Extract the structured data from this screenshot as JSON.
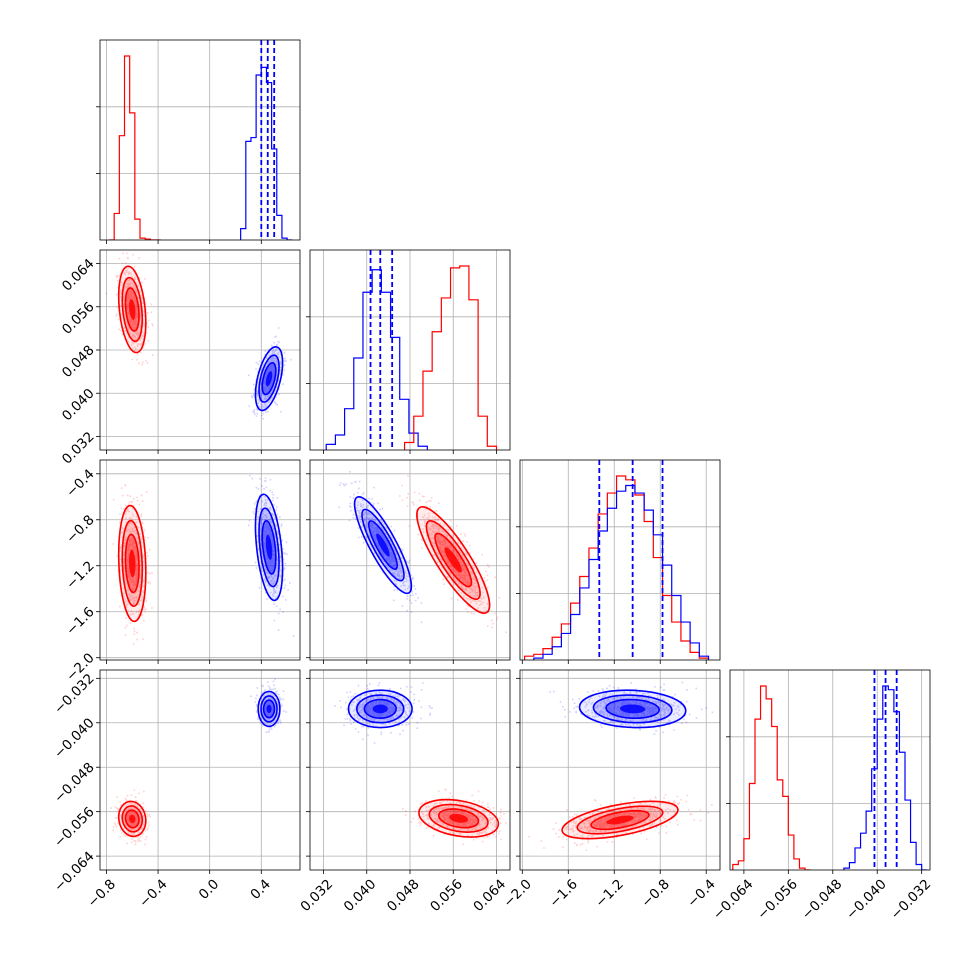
{
  "figure": {
    "type": "corner-plot",
    "grid": true
  },
  "colors": {
    "red": "#ff0000",
    "blue": "#0000ff",
    "grid": "#b0b0b0",
    "frame": "#000000"
  },
  "parameters": [
    {
      "range": [
        -0.85,
        0.7
      ],
      "ticks": [
        "−0.8",
        "−0.4",
        "0.0",
        "0.4"
      ],
      "tick_values": [
        -0.8,
        -0.4,
        0.0,
        0.4
      ]
    },
    {
      "range": [
        0.0295,
        0.0665
      ],
      "ticks": [
        "0.032",
        "0.040",
        "0.048",
        "0.056",
        "0.064"
      ],
      "tick_values": [
        0.032,
        0.04,
        0.048,
        0.056,
        0.064
      ]
    },
    {
      "range": [
        -2.02,
        -0.28
      ],
      "ticks": [
        "−2.0",
        "−1.6",
        "−1.2",
        "−0.8",
        "−0.4"
      ],
      "tick_values": [
        -2.0,
        -1.6,
        -1.2,
        -0.8,
        -0.4
      ]
    },
    {
      "range": [
        -0.0665,
        -0.0305
      ],
      "ticks": [
        "−0.064",
        "−0.056",
        "−0.048",
        "−0.040",
        "−0.032"
      ],
      "tick_values": [
        -0.064,
        -0.056,
        -0.048,
        -0.04,
        -0.032
      ]
    }
  ],
  "chart_data": [
    {
      "type": "histogram",
      "panel": "param-1",
      "series": [
        {
          "color": "red",
          "edges": [
            -0.78,
            -0.74,
            -0.7,
            -0.66,
            -0.62,
            -0.58,
            -0.54,
            -0.5,
            -0.46,
            -0.42,
            -0.38
          ],
          "counts": [
            0.0,
            0.14,
            0.55,
            0.97,
            0.67,
            0.11,
            0.01,
            0.005,
            0.0,
            0.0
          ]
        },
        {
          "color": "blue",
          "edges": [
            0.24,
            0.28,
            0.32,
            0.36,
            0.4,
            0.44,
            0.48,
            0.52,
            0.56,
            0.6,
            0.64
          ],
          "counts": [
            0.06,
            0.52,
            0.54,
            0.87,
            0.91,
            0.83,
            0.48,
            0.13,
            0.01,
            0.0
          ]
        }
      ],
      "quantiles": {
        "color": "blue",
        "values": [
          0.4,
          0.45,
          0.5
        ]
      }
    },
    {
      "type": "histogram",
      "panel": "param-2",
      "series": [
        {
          "color": "blue",
          "edges": [
            0.0325,
            0.0342,
            0.0359,
            0.0376,
            0.0393,
            0.041,
            0.0427,
            0.0444,
            0.0461,
            0.0478,
            0.0495,
            0.0512
          ],
          "counts": [
            0.03,
            0.08,
            0.22,
            0.49,
            0.84,
            0.96,
            0.84,
            0.6,
            0.27,
            0.09,
            0.02
          ]
        },
        {
          "color": "red",
          "edges": [
            0.047,
            0.0487,
            0.0504,
            0.0521,
            0.0538,
            0.0555,
            0.0572,
            0.0589,
            0.0606,
            0.0623,
            0.064
          ],
          "counts": [
            0.04,
            0.18,
            0.42,
            0.63,
            0.81,
            0.97,
            0.98,
            0.8,
            0.18,
            0.02
          ]
        }
      ],
      "quantiles": {
        "color": "blue",
        "values": [
          0.0407,
          0.0425,
          0.0447
        ]
      }
    },
    {
      "type": "histogram",
      "panel": "param-3",
      "series": [
        {
          "color": "red",
          "edges": [
            -1.98,
            -1.9,
            -1.82,
            -1.74,
            -1.66,
            -1.58,
            -1.5,
            -1.42,
            -1.34,
            -1.26,
            -1.18,
            -1.1,
            -1.02,
            -0.94,
            -0.86,
            -0.78,
            -0.7,
            -0.62,
            -0.54,
            -0.46,
            -0.38
          ],
          "counts": [
            0.02,
            0.03,
            0.06,
            0.12,
            0.19,
            0.3,
            0.44,
            0.59,
            0.77,
            0.88,
            0.97,
            0.95,
            0.87,
            0.73,
            0.54,
            0.34,
            0.2,
            0.1,
            0.04,
            0.01
          ]
        },
        {
          "color": "blue",
          "edges": [
            -1.9,
            -1.82,
            -1.74,
            -1.66,
            -1.58,
            -1.5,
            -1.42,
            -1.34,
            -1.26,
            -1.18,
            -1.1,
            -1.02,
            -0.94,
            -0.86,
            -0.78,
            -0.7,
            -0.62,
            -0.54,
            -0.46,
            -0.38
          ],
          "counts": [
            0.01,
            0.03,
            0.07,
            0.14,
            0.24,
            0.38,
            0.53,
            0.68,
            0.8,
            0.89,
            0.92,
            0.88,
            0.79,
            0.66,
            0.5,
            0.34,
            0.2,
            0.09,
            0.02
          ]
        }
      ],
      "quantiles": {
        "color": "blue",
        "values": [
          -1.33,
          -1.04,
          -0.78
        ]
      }
    },
    {
      "type": "histogram",
      "panel": "param-4",
      "series": [
        {
          "color": "red",
          "edges": [
            -0.066,
            -0.065,
            -0.064,
            -0.063,
            -0.062,
            -0.061,
            -0.06,
            -0.059,
            -0.058,
            -0.057,
            -0.056,
            -0.055,
            -0.054,
            -0.053,
            -0.052
          ],
          "counts": [
            0.03,
            0.05,
            0.17,
            0.47,
            0.82,
            1.0,
            0.93,
            0.78,
            0.49,
            0.4,
            0.19,
            0.06,
            0.01,
            0.0
          ]
        },
        {
          "color": "blue",
          "edges": [
            -0.046,
            -0.045,
            -0.044,
            -0.043,
            -0.042,
            -0.041,
            -0.04,
            -0.039,
            -0.038,
            -0.037,
            -0.036,
            -0.035,
            -0.034,
            -0.033,
            -0.032,
            -0.031
          ],
          "counts": [
            0.01,
            0.04,
            0.12,
            0.2,
            0.32,
            0.55,
            0.82,
            1.0,
            0.98,
            0.86,
            0.64,
            0.38,
            0.15,
            0.03,
            0.0
          ]
        }
      ],
      "quantiles": {
        "color": "blue",
        "values": [
          -0.0405,
          -0.0385,
          -0.0365
        ]
      }
    },
    {
      "type": "scatter-density",
      "panel": "param-1-vs-param-2",
      "clusters": [
        {
          "color": "red",
          "mean": [
            -0.6,
            0.0555
          ],
          "sd": [
            0.05,
            0.0038
          ],
          "corr": -0.3
        },
        {
          "color": "blue",
          "mean": [
            0.46,
            0.0427
          ],
          "sd": [
            0.05,
            0.0028
          ],
          "corr": 0.5
        }
      ]
    },
    {
      "type": "scatter-density",
      "panel": "param-1-vs-param-3",
      "clusters": [
        {
          "color": "red",
          "mean": [
            -0.6,
            -1.18
          ],
          "sd": [
            0.05,
            0.24
          ],
          "corr": -0.15
        },
        {
          "color": "blue",
          "mean": [
            0.46,
            -1.04
          ],
          "sd": [
            0.05,
            0.22
          ],
          "corr": -0.4
        }
      ]
    },
    {
      "type": "scatter-density",
      "panel": "param-1-vs-param-4",
      "clusters": [
        {
          "color": "red",
          "mean": [
            -0.6,
            -0.0573
          ],
          "sd": [
            0.05,
            0.0015
          ],
          "corr": -0.1
        },
        {
          "color": "blue",
          "mean": [
            0.46,
            -0.0375
          ],
          "sd": [
            0.04,
            0.0015
          ],
          "corr": 0.0
        }
      ]
    },
    {
      "type": "scatter-density",
      "panel": "param-2-vs-param-3",
      "clusters": [
        {
          "color": "red",
          "mean": [
            0.056,
            -1.15
          ],
          "sd": [
            0.0032,
            0.22
          ],
          "corr": -0.85
        },
        {
          "color": "blue",
          "mean": [
            0.043,
            -1.02
          ],
          "sd": [
            0.0025,
            0.2
          ],
          "corr": -0.85
        }
      ]
    },
    {
      "type": "scatter-density",
      "panel": "param-2-vs-param-4",
      "clusters": [
        {
          "color": "red",
          "mean": [
            0.057,
            -0.0572
          ],
          "sd": [
            0.0035,
            0.0016
          ],
          "corr": -0.3
        },
        {
          "color": "blue",
          "mean": [
            0.0425,
            -0.0375
          ],
          "sd": [
            0.0028,
            0.0016
          ],
          "corr": 0.0
        }
      ]
    },
    {
      "type": "scatter-density",
      "panel": "param-3-vs-param-4",
      "clusters": [
        {
          "color": "red",
          "mean": [
            -1.15,
            -0.0575
          ],
          "sd": [
            0.24,
            0.0016
          ],
          "corr": 0.55
        },
        {
          "color": "blue",
          "mean": [
            -1.04,
            -0.0375
          ],
          "sd": [
            0.22,
            0.0016
          ],
          "corr": -0.1
        }
      ]
    }
  ]
}
